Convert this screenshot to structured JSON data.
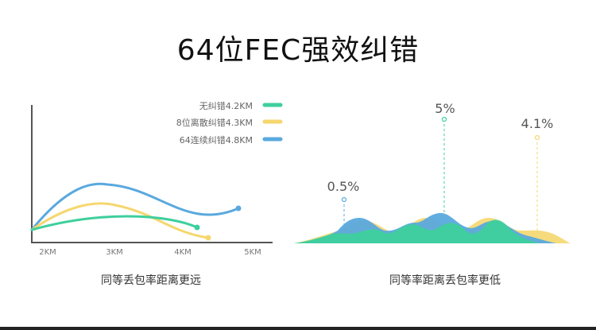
{
  "title": "64位FEC强效纠错",
  "colors": {
    "green": "#3ecf9c",
    "yellow": "#f5d76e",
    "blue": "#5aa9de",
    "axis": "#555555"
  },
  "left_caption": "同等丢包率距离更远",
  "right_caption": "同等率距离丢包率更低",
  "chart_data": [
    {
      "type": "line",
      "x_ticks": [
        "2KM",
        "3KM",
        "4KM",
        "5KM"
      ],
      "legend_position": "top-right",
      "series": [
        {
          "name": "无纠错4.2KM",
          "color": "#3ecf9c",
          "end_km": 4.2
        },
        {
          "name": "8位离散纠错4.3KM",
          "color": "#f5d76e",
          "end_km": 4.3
        },
        {
          "name": "64连续纠错4.8KM",
          "color": "#5aa9de",
          "end_km": 4.8
        }
      ]
    },
    {
      "type": "area",
      "markers": [
        {
          "label": "0.5%",
          "color": "#5aa9de"
        },
        {
          "label": "5%",
          "color": "#3ecf9c"
        },
        {
          "label": "4.1%",
          "color": "#f5d76e"
        }
      ]
    }
  ]
}
